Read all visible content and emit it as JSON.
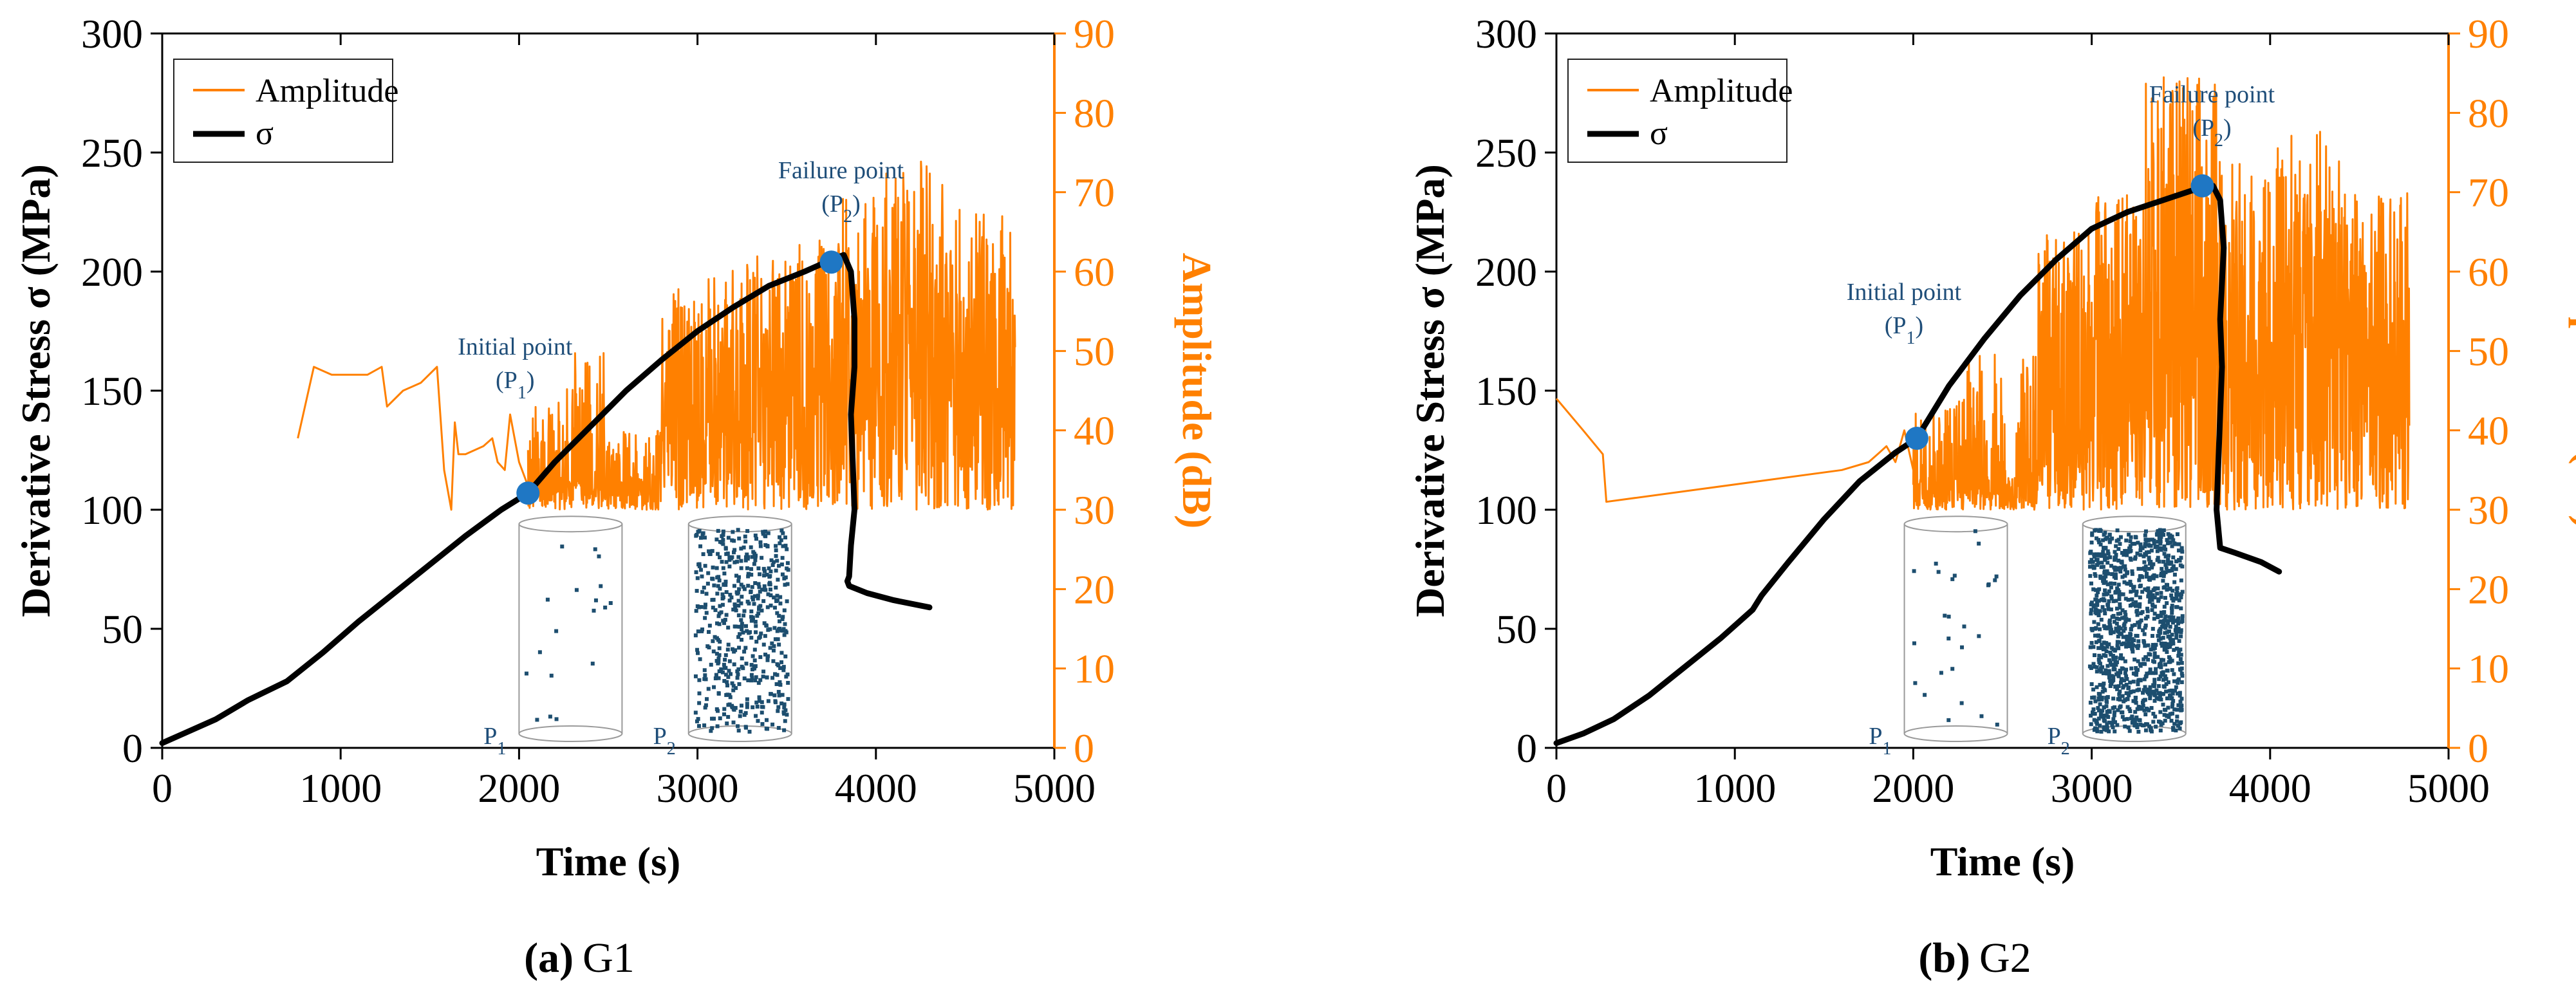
{
  "colors": {
    "amplitude": "#FF8000",
    "stress": "#000000",
    "point": "#1f77c4",
    "annotation": "#1f4e79",
    "scatter": "#1d4e6f"
  },
  "chart_data": [
    {
      "id": "G1",
      "type": "line",
      "caption": {
        "label": "(a)",
        "name": "G1"
      },
      "xlabel": "Time (s)",
      "ylabel": "Derivative Stress σ (MPa)",
      "y2label": "Amplitude (dB)",
      "xlim": [
        0,
        5000
      ],
      "ylim": [
        0,
        300
      ],
      "y2lim": [
        0,
        90
      ],
      "xticks": [
        "0",
        "1000",
        "2000",
        "3000",
        "4000",
        "5000"
      ],
      "yticks": [
        "0",
        "50",
        "100",
        "150",
        "200",
        "250",
        "300"
      ],
      "y2ticks": [
        "0",
        "10",
        "20",
        "30",
        "40",
        "50",
        "60",
        "70",
        "80",
        "90"
      ],
      "legend": [
        "Amplitude",
        "σ"
      ],
      "series": [
        {
          "name": "σ",
          "axis": "left",
          "x": [
            0,
            120,
            300,
            480,
            700,
            900,
            1100,
            1300,
            1500,
            1700,
            1900,
            2050,
            2200,
            2400,
            2600,
            2800,
            3000,
            3200,
            3400,
            3600,
            3750,
            3820,
            3860,
            3880,
            3880,
            3860,
            3870,
            3880,
            3860,
            3850,
            3840,
            3850,
            3950,
            4100,
            4300
          ],
          "y": [
            2,
            6,
            12,
            20,
            28,
            40,
            53,
            65,
            77,
            89,
            100,
            107,
            120,
            135,
            150,
            163,
            175,
            185,
            194,
            200,
            205,
            207,
            200,
            180,
            160,
            140,
            120,
            100,
            85,
            72,
            70,
            68,
            65,
            62,
            59
          ]
        },
        {
          "name": "Amplitude",
          "axis": "right",
          "segments": [
            {
              "x": [
                760,
                850,
                950,
                1050,
                1150,
                1230,
                1260,
                1350,
                1450,
                1540,
                1580,
                1620,
                1640,
                1660,
                1700,
                1800,
                1850,
                1880,
                1920,
                1950,
                2000,
                2050
              ],
              "y": [
                39,
                48,
                47,
                47,
                47,
                48,
                43,
                45,
                46,
                48,
                35,
                30,
                41,
                37,
                37,
                38,
                39,
                36,
                35,
                42,
                36,
                33
              ]
            },
            {
              "dense": true,
              "seed": 11,
              "x0": 2050,
              "x1": 4780,
              "base": 30,
              "density": 1.0,
              "peaks": [
                [
                  2050,
                  2250,
                  44
                ],
                [
                  2250,
                  2500,
                  50
                ],
                [
                  2500,
                  2800,
                  40
                ],
                [
                  2800,
                  3050,
                  58
                ],
                [
                  3050,
                  3550,
                  62
                ],
                [
                  3550,
                  3800,
                  64
                ],
                [
                  3800,
                  4000,
                  70
                ],
                [
                  4000,
                  4400,
                  74
                ],
                [
                  4400,
                  4780,
                  68
                ]
              ]
            }
          ]
        }
      ],
      "markers": [
        {
          "x": 2050,
          "y": 107,
          "label": "Initial point",
          "sub": "(P",
          "subIdx": "1",
          "subEnd": ")"
        },
        {
          "x": 3750,
          "y": 204,
          "label": "Failure point",
          "sub": "(P",
          "subIdx": "2",
          "subEnd": ")"
        }
      ],
      "insets": [
        {
          "label": "P",
          "idx": "1",
          "count": 18,
          "seed": 3
        },
        {
          "label": "P",
          "idx": "2",
          "count": 520,
          "seed": 7
        }
      ]
    },
    {
      "id": "G2",
      "type": "line",
      "caption": {
        "label": "(b)",
        "name": "G2"
      },
      "xlabel": "Time (s)",
      "ylabel": "Derivative Stress σ (MPa)",
      "y2label": "Amplitude (dB)",
      "xlim": [
        0,
        5000
      ],
      "ylim": [
        0,
        300
      ],
      "y2lim": [
        0,
        90
      ],
      "xticks": [
        "0",
        "1000",
        "2000",
        "3000",
        "4000",
        "5000"
      ],
      "yticks": [
        "0",
        "50",
        "100",
        "150",
        "200",
        "250",
        "300"
      ],
      "y2ticks": [
        "0",
        "10",
        "20",
        "30",
        "40",
        "50",
        "60",
        "70",
        "80",
        "90"
      ],
      "legend": [
        "Amplitude",
        "σ"
      ],
      "series": [
        {
          "name": "σ",
          "axis": "left",
          "x": [
            0,
            150,
            320,
            520,
            720,
            920,
            1100,
            1150,
            1300,
            1500,
            1700,
            1900,
            2020,
            2200,
            2400,
            2600,
            2800,
            3000,
            3200,
            3400,
            3600,
            3680,
            3720,
            3740,
            3720,
            3730,
            3720,
            3710,
            3700,
            3720,
            3800,
            3950,
            4050
          ],
          "y": [
            2,
            6,
            12,
            22,
            34,
            46,
            58,
            64,
            78,
            96,
            112,
            124,
            130,
            152,
            172,
            190,
            205,
            218,
            225,
            230,
            235,
            236,
            230,
            210,
            180,
            160,
            140,
            120,
            100,
            84,
            82,
            78,
            74
          ]
        },
        {
          "name": "Amplitude",
          "axis": "right",
          "segments": [
            {
              "x": [
                0,
                150,
                260,
                280,
                1600,
                1750,
                1800,
                1850,
                1900,
                1950,
                2000
              ],
              "y": [
                44,
                40,
                37,
                31,
                35,
                36,
                37,
                38,
                36,
                40,
                35
              ]
            },
            {
              "dense": true,
              "seed": 23,
              "x0": 2000,
              "x1": 4780,
              "base": 30,
              "density": 1.15,
              "peaks": [
                [
                  2000,
                  2300,
                  44
                ],
                [
                  2300,
                  2700,
                  50
                ],
                [
                  2700,
                  3000,
                  65
                ],
                [
                  3000,
                  3300,
                  70
                ],
                [
                  3300,
                  3700,
                  85
                ],
                [
                  3700,
                  4000,
                  74
                ],
                [
                  4000,
                  4400,
                  78
                ],
                [
                  4400,
                  4780,
                  70
                ]
              ]
            }
          ]
        }
      ],
      "markers": [
        {
          "x": 2020,
          "y": 130,
          "label": "Initial point",
          "sub": "(P",
          "subIdx": "1",
          "subEnd": ")"
        },
        {
          "x": 3620,
          "y": 236,
          "label": "Failure point",
          "sub": "(P",
          "subIdx": "2",
          "subEnd": ")"
        }
      ],
      "insets": [
        {
          "label": "P",
          "idx": "1",
          "count": 26,
          "seed": 5
        },
        {
          "label": "P",
          "idx": "2",
          "count": 1100,
          "seed": 9
        }
      ]
    }
  ]
}
